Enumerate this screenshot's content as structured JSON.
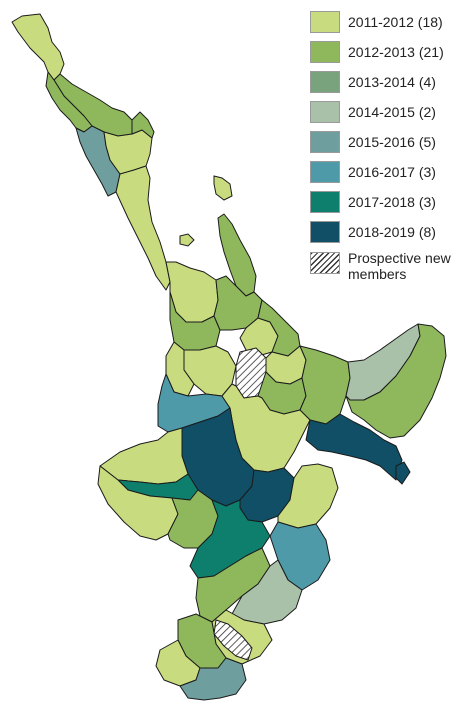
{
  "colors": {
    "y2011_2012": "#c9db7f",
    "y2012_2013": "#8fb85d",
    "y2013_2014": "#79a37c",
    "y2014_2015": "#a9c1a8",
    "y2015_2016": "#6e9e9e",
    "y2016_2017": "#4f9aa8",
    "y2017_2018": "#0e7f6c",
    "y2018_2019": "#104f66",
    "prospective": "hatch",
    "outline": "#1b1b1b"
  },
  "legend": [
    {
      "key": "y2011_2012",
      "label": "2011-2012 (18)",
      "color": "#c9db7f"
    },
    {
      "key": "y2012_2013",
      "label": "2012-2013 (21)",
      "color": "#8fb85d"
    },
    {
      "key": "y2013_2014",
      "label": "2013-2014 (4)",
      "color": "#79a37c"
    },
    {
      "key": "y2014_2015",
      "label": "2014-2015 (2)",
      "color": "#a9c1a8"
    },
    {
      "key": "y2015_2016",
      "label": "2015-2016 (5)",
      "color": "#6e9e9e"
    },
    {
      "key": "y2016_2017",
      "label": "2016-2017 (3)",
      "color": "#4f9aa8"
    },
    {
      "key": "y2017_2018",
      "label": "2017-2018 (3)",
      "color": "#0e7f6c"
    },
    {
      "key": "y2018_2019",
      "label": "2018-2019 (8)",
      "color": "#104f66"
    },
    {
      "key": "prospective",
      "label": "Prospective new members",
      "color": "hatch"
    }
  ]
}
